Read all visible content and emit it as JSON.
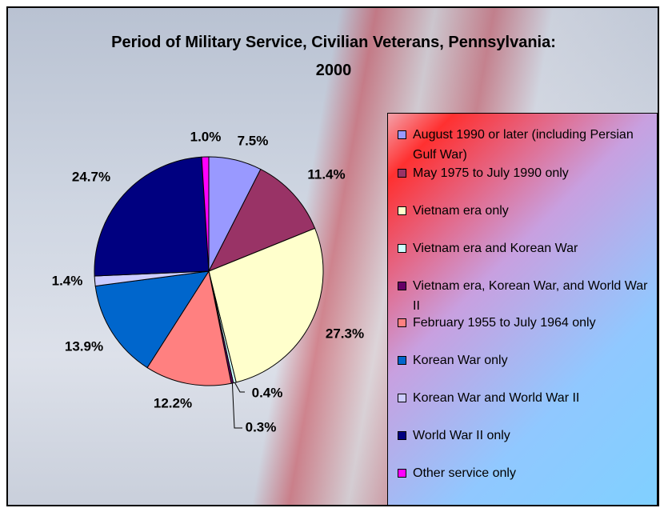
{
  "chart_data": {
    "type": "pie",
    "title": "Period of Military Service, Civilian Veterans, Pennsylvania: 2000",
    "categories": [
      "August 1990 or later (including Persian Gulf War)",
      "May 1975 to July 1990 only",
      "Vietnam era only",
      "Vietnam era and Korean War",
      "Vietnam era, Korean War, and World War II",
      "February 1955 to July 1964 only",
      "Korean War only",
      "Korean War and World War II",
      "World War II only",
      "Other service only"
    ],
    "values": [
      7.5,
      11.4,
      27.3,
      0.4,
      0.3,
      12.2,
      13.9,
      1.4,
      24.7,
      1.0
    ],
    "value_labels": [
      "7.5%",
      "11.4%",
      "27.3%",
      "0.4%",
      "0.3%",
      "12.2%",
      "13.9%",
      "1.4%",
      "24.7%",
      "1.0%"
    ],
    "colors": [
      "#9999ff",
      "#993366",
      "#ffffcc",
      "#ccffff",
      "#660066",
      "#ff8080",
      "#0066cc",
      "#ccccff",
      "#000080",
      "#ff00ff"
    ],
    "legend": "right"
  }
}
